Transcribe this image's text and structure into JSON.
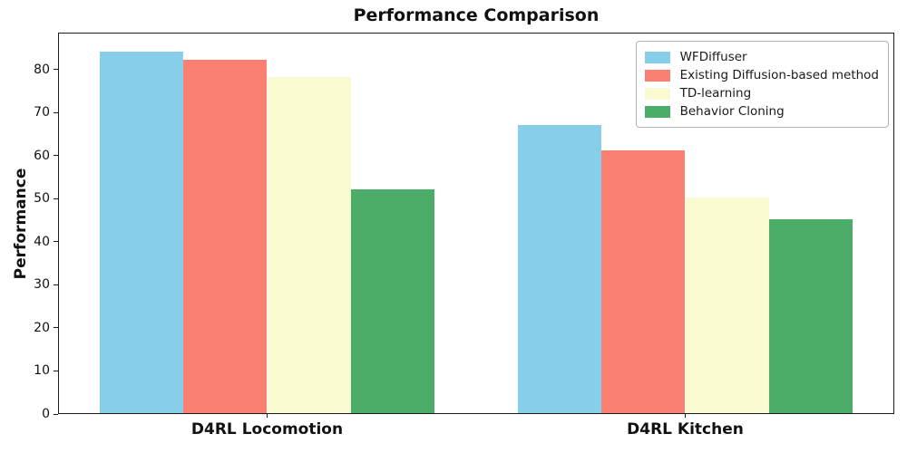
{
  "figure": {
    "background": "#ffffff",
    "text_color": "#111111",
    "spine_color": "#1a1a1a"
  },
  "chart_data": {
    "type": "bar",
    "title": "Performance Comparison",
    "xlabel": "",
    "ylabel": "Performance",
    "categories": [
      "D4RL Locomotion",
      "D4RL Kitchen"
    ],
    "series": [
      {
        "name": "WFDiffuser",
        "color": "#87CEEB",
        "values": [
          84,
          67
        ]
      },
      {
        "name": "Existing Diffusion-based method",
        "color": "#FA8072",
        "values": [
          82,
          61
        ]
      },
      {
        "name": "TD-learning",
        "color": "#FAFAD2",
        "values": [
          78,
          50
        ]
      },
      {
        "name": "Behavior Cloning",
        "color": "#4BAD68",
        "values": [
          52,
          45
        ]
      }
    ],
    "ylim": [
      0,
      88.6
    ],
    "yticks": [
      0,
      10,
      20,
      30,
      40,
      50,
      60,
      70,
      80
    ],
    "grid": false,
    "legend": {
      "position": "upper right",
      "entries": [
        "WFDiffuser",
        "Existing Diffusion-based method",
        "TD-learning",
        "Behavior Cloning"
      ]
    }
  }
}
